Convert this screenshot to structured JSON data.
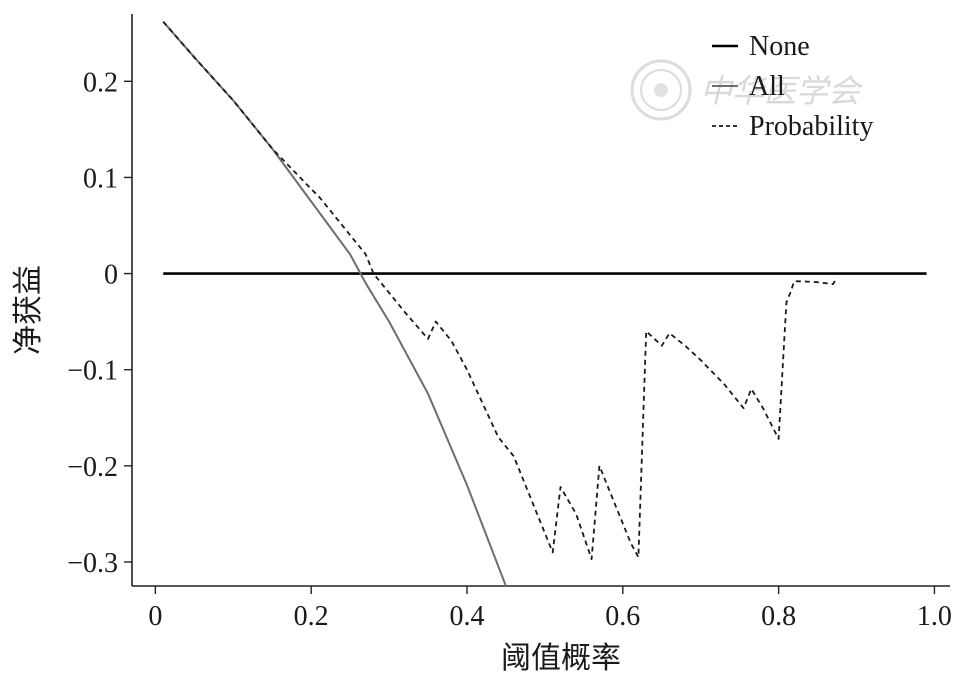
{
  "chart_data": {
    "type": "line",
    "xlabel": "阈值概率",
    "ylabel": "净获益",
    "xlim": [
      -0.03,
      1.02
    ],
    "ylim": [
      -0.325,
      0.27
    ],
    "x_ticks": [
      0,
      0.2,
      0.4,
      0.6,
      0.8,
      1.0
    ],
    "x_tick_labels": [
      "0",
      "0.2",
      "0.4",
      "0.6",
      "0.8",
      "1.0"
    ],
    "y_ticks": [
      0.2,
      0.1,
      0,
      -0.1,
      -0.2,
      -0.3
    ],
    "y_tick_labels": [
      "0.2",
      "0.1",
      "0",
      "−0.1",
      "−0.2",
      "−0.3"
    ],
    "grid": false,
    "legend_position": "top-right",
    "series": [
      {
        "name": "None",
        "style": "solid",
        "color": "#000000",
        "x": [
          0.01,
          0.99
        ],
        "y": [
          0,
          0
        ]
      },
      {
        "name": "All",
        "style": "solid",
        "color": "#6e6e6e",
        "x": [
          0.01,
          0.05,
          0.1,
          0.15,
          0.2,
          0.25,
          0.27,
          0.3,
          0.35,
          0.4,
          0.45
        ],
        "y": [
          0.262,
          0.225,
          0.18,
          0.13,
          0.075,
          0.02,
          -0.01,
          -0.05,
          -0.125,
          -0.22,
          -0.325
        ]
      },
      {
        "name": "Probability",
        "style": "dashed",
        "color": "#1a1a1a",
        "x": [
          0.01,
          0.05,
          0.1,
          0.15,
          0.2,
          0.21,
          0.23,
          0.25,
          0.27,
          0.28,
          0.3,
          0.32,
          0.35,
          0.36,
          0.38,
          0.4,
          0.44,
          0.46,
          0.48,
          0.5,
          0.51,
          0.52,
          0.54,
          0.56,
          0.57,
          0.59,
          0.61,
          0.62,
          0.63,
          0.65,
          0.66,
          0.68,
          0.7,
          0.73,
          0.755,
          0.765,
          0.78,
          0.8,
          0.81,
          0.815,
          0.82,
          0.83,
          0.85,
          0.87,
          0.875
        ],
        "y": [
          0.262,
          0.225,
          0.18,
          0.13,
          0.088,
          0.08,
          0.06,
          0.04,
          0.02,
          0.0,
          -0.02,
          -0.04,
          -0.068,
          -0.05,
          -0.07,
          -0.1,
          -0.17,
          -0.19,
          -0.23,
          -0.27,
          -0.29,
          -0.222,
          -0.25,
          -0.297,
          -0.2,
          -0.24,
          -0.28,
          -0.295,
          -0.06,
          -0.075,
          -0.062,
          -0.075,
          -0.09,
          -0.115,
          -0.14,
          -0.12,
          -0.14,
          -0.172,
          -0.03,
          -0.02,
          -0.008,
          -0.008,
          -0.009,
          -0.011,
          -0.004
        ]
      }
    ]
  },
  "watermark": {
    "text": "中华医学会",
    "color": "#d8d8d8"
  }
}
